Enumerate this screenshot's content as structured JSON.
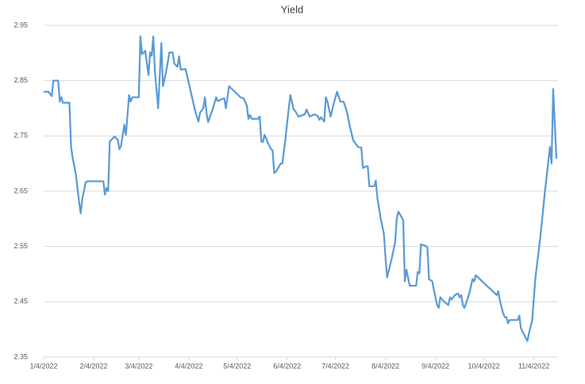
{
  "chart_data": {
    "type": "line",
    "title": "Yield",
    "x": [
      "1/4/2022",
      "1/7/2022",
      "1/9/2022",
      "1/10/2022",
      "1/13/2022",
      "1/14/2022",
      "1/15/2022",
      "1/16/2022",
      "1/20/2022",
      "1/21/2022",
      "1/22/2022",
      "1/24/2022",
      "1/26/2022",
      "1/27/2022",
      "1/28/2022",
      "1/29/2022",
      "1/30/2022",
      "1/31/2022",
      "2/10/2022",
      "2/11/2022",
      "2/12/2022",
      "2/13/2022",
      "2/14/2022",
      "2/17/2022",
      "2/19/2022",
      "2/20/2022",
      "2/21/2022",
      "2/23/2022",
      "2/24/2022",
      "2/26/2022",
      "2/27/2022",
      "2/28/2022",
      "3/4/2022",
      "3/5/2022",
      "3/6/2022",
      "3/8/2022",
      "3/10/2022",
      "3/11/2022",
      "3/12/2022",
      "3/13/2022",
      "3/14/2022",
      "3/16/2022",
      "3/18/2022",
      "3/19/2022",
      "3/21/2022",
      "3/23/2022",
      "3/25/2022",
      "3/26/2022",
      "3/28/2022",
      "3/29/2022",
      "3/30/2022",
      "4/2/2022",
      "4/8/2022",
      "4/10/2022",
      "4/11/2022",
      "4/13/2022",
      "4/14/2022",
      "4/15/2022",
      "4/16/2022",
      "4/19/2022",
      "4/21/2022",
      "4/22/2022",
      "4/24/2022",
      "4/26/2022",
      "4/27/2022",
      "4/29/2022",
      "5/6/2022",
      "5/8/2022",
      "5/10/2022",
      "5/11/2022",
      "5/12/2022",
      "5/13/2022",
      "5/17/2022",
      "5/18/2022",
      "5/19/2022",
      "5/20/2022",
      "5/21/2022",
      "5/23/2022",
      "5/25/2022",
      "5/26/2022",
      "5/27/2022",
      "5/28/2022",
      "5/31/2022",
      "6/1/2022",
      "6/3/2022",
      "6/4/2022",
      "6/6/2022",
      "6/8/2022",
      "6/9/2022",
      "6/11/2022",
      "6/15/2022",
      "6/16/2022",
      "6/18/2022",
      "6/21/2022",
      "6/23/2022",
      "6/24/2022",
      "6/25/2022",
      "6/27/2022",
      "6/28/2022",
      "6/29/2022",
      "7/1/2022",
      "7/3/2022",
      "7/5/2022",
      "7/7/2022",
      "7/9/2022",
      "7/11/2022",
      "7/13/2022",
      "7/15/2022",
      "7/18/2022",
      "7/20/2022",
      "7/21/2022",
      "7/23/2022",
      "7/24/2022",
      "7/25/2022",
      "7/28/2022",
      "7/29/2022",
      "7/30/2022",
      "8/1/2022",
      "8/3/2022",
      "8/4/2022",
      "8/5/2022",
      "8/8/2022",
      "8/10/2022",
      "8/11/2022",
      "8/12/2022",
      "8/14/2022",
      "8/15/2022",
      "8/16/2022",
      "8/17/2022",
      "8/19/2022",
      "8/23/2022",
      "8/24/2022",
      "8/25/2022",
      "8/26/2022",
      "8/29/2022",
      "8/30/2022",
      "8/31/2022",
      "9/2/2022",
      "9/3/2022",
      "9/5/2022",
      "9/6/2022",
      "9/7/2022",
      "9/9/2022",
      "9/12/2022",
      "9/13/2022",
      "9/14/2022",
      "9/16/2022",
      "9/18/2022",
      "9/19/2022",
      "9/20/2022",
      "9/21/2022",
      "9/22/2022",
      "9/25/2022",
      "9/27/2022",
      "9/28/2022",
      "9/29/2022",
      "10/12/2022",
      "10/13/2022",
      "10/14/2022",
      "10/16/2022",
      "10/17/2022",
      "10/18/2022",
      "10/19/2022",
      "10/20/2022",
      "10/25/2022",
      "10/26/2022",
      "10/27/2022",
      "10/28/2022",
      "10/31/2022",
      "11/1/2022",
      "11/3/2022",
      "11/5/2022",
      "11/8/2022",
      "11/11/2022",
      "11/14/2022",
      "11/15/2022",
      "11/16/2022",
      "11/18/2022"
    ],
    "series": [
      {
        "name": "Yield",
        "color": "#5b9bd5",
        "values": [
          2.83,
          2.83,
          2.822,
          2.85,
          2.85,
          2.812,
          2.82,
          2.81,
          2.81,
          2.73,
          2.71,
          2.68,
          2.63,
          2.61,
          2.637,
          2.65,
          2.666,
          2.668,
          2.668,
          2.644,
          2.656,
          2.65,
          2.74,
          2.749,
          2.743,
          2.726,
          2.732,
          2.77,
          2.752,
          2.824,
          2.812,
          2.82,
          2.82,
          2.93,
          2.898,
          2.904,
          2.86,
          2.901,
          2.895,
          2.93,
          2.867,
          2.8,
          2.918,
          2.84,
          2.867,
          2.901,
          2.901,
          2.881,
          2.875,
          2.894,
          2.87,
          2.871,
          2.795,
          2.776,
          2.792,
          2.8,
          2.82,
          2.792,
          2.775,
          2.8,
          2.82,
          2.813,
          2.816,
          2.818,
          2.8,
          2.84,
          2.82,
          2.818,
          2.805,
          2.781,
          2.788,
          2.781,
          2.781,
          2.785,
          2.74,
          2.739,
          2.752,
          2.738,
          2.726,
          2.724,
          2.683,
          2.685,
          2.7,
          2.7,
          2.745,
          2.774,
          2.824,
          2.798,
          2.795,
          2.785,
          2.789,
          2.798,
          2.785,
          2.789,
          2.786,
          2.779,
          2.784,
          2.776,
          2.82,
          2.812,
          2.785,
          2.81,
          2.83,
          2.812,
          2.812,
          2.795,
          2.766,
          2.742,
          2.73,
          2.729,
          2.692,
          2.695,
          2.695,
          2.659,
          2.659,
          2.669,
          2.637,
          2.601,
          2.573,
          2.53,
          2.494,
          2.53,
          2.558,
          2.601,
          2.613,
          2.603,
          2.597,
          2.487,
          2.508,
          2.479,
          2.479,
          2.504,
          2.501,
          2.554,
          2.551,
          2.548,
          2.491,
          2.487,
          2.472,
          2.444,
          2.439,
          2.458,
          2.451,
          2.444,
          2.458,
          2.454,
          2.462,
          2.465,
          2.458,
          2.462,
          2.444,
          2.439,
          2.465,
          2.491,
          2.487,
          2.498,
          2.462,
          2.469,
          2.451,
          2.429,
          2.422,
          2.422,
          2.411,
          2.417,
          2.417,
          2.425,
          2.402,
          2.396,
          2.379,
          2.393,
          2.417,
          2.494,
          2.566,
          2.652,
          2.73,
          2.7,
          2.835,
          2.709
        ]
      }
    ],
    "xlim": [
      "1/4/2022",
      "11/19/2022"
    ],
    "xticks": [
      "1/4/2022",
      "2/4/2022",
      "3/4/2022",
      "4/4/2022",
      "5/4/2022",
      "6/4/2022",
      "7/4/2022",
      "8/4/2022",
      "9/4/2022",
      "10/4/2022",
      "11/4/2022"
    ],
    "ylim": [
      2.35,
      2.95
    ],
    "yticks": [
      2.35,
      2.45,
      2.55,
      2.65,
      2.75,
      2.85,
      2.95
    ],
    "grid": true
  }
}
